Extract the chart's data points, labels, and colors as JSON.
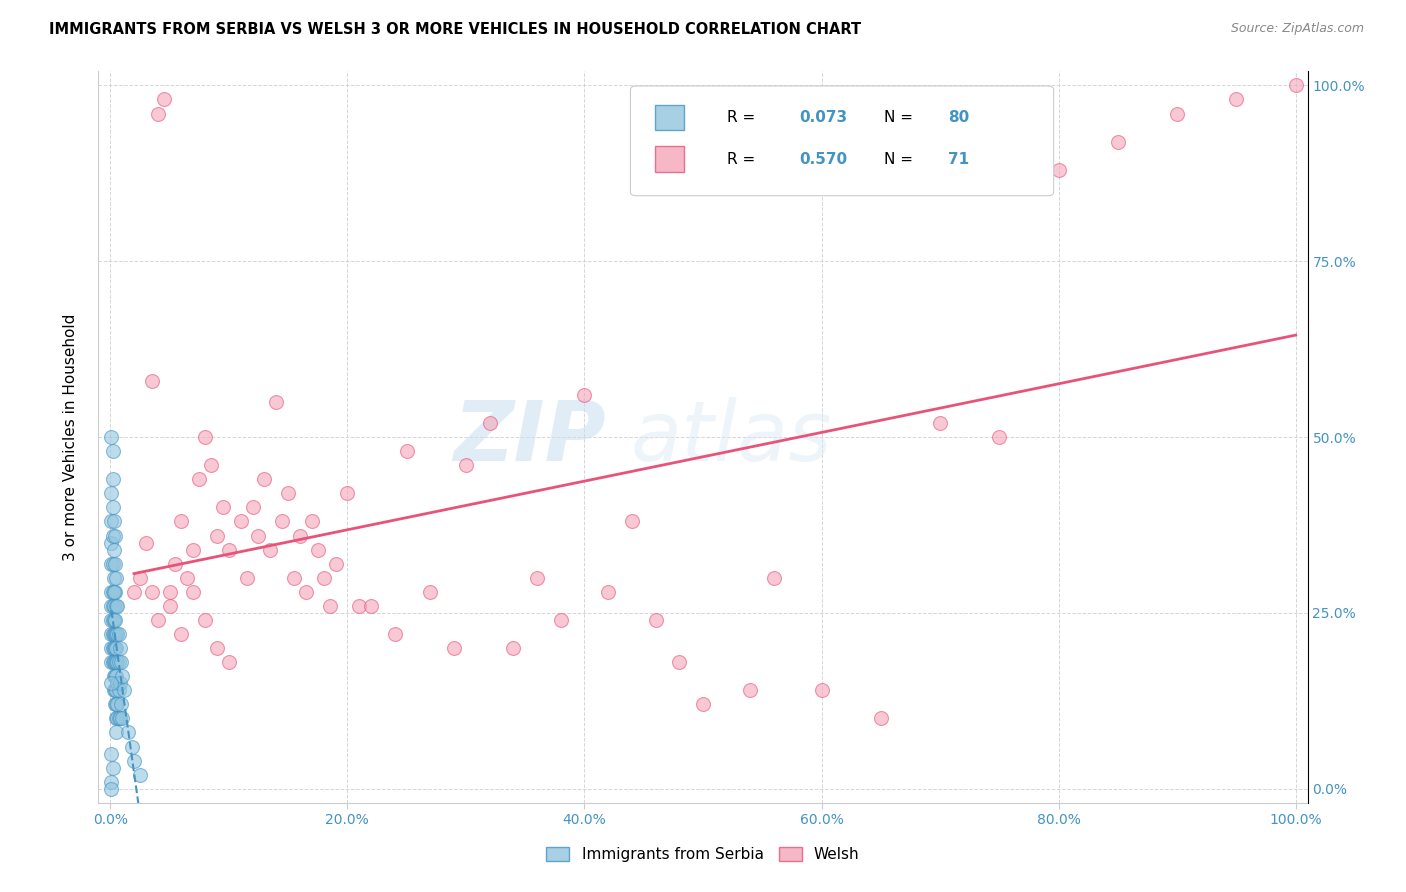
{
  "title": "IMMIGRANTS FROM SERBIA VS WELSH 3 OR MORE VEHICLES IN HOUSEHOLD CORRELATION CHART",
  "source": "Source: ZipAtlas.com",
  "ylabel": "3 or more Vehicles in Household",
  "xlim": [
    -0.01,
    1.01
  ],
  "ylim": [
    -0.02,
    1.02
  ],
  "x_ticks": [
    0.0,
    0.2,
    0.4,
    0.6,
    0.8,
    1.0
  ],
  "y_ticks": [
    0.0,
    0.25,
    0.5,
    0.75,
    1.0
  ],
  "serbia_R": 0.073,
  "serbia_N": 80,
  "welsh_R": 0.57,
  "welsh_N": 71,
  "serbia_color": "#92c5de",
  "welsh_color": "#f4a6b8",
  "serbia_line_color": "#4393c3",
  "welsh_line_color": "#e8537a",
  "watermark_zip": "ZIP",
  "watermark_atlas": "atlas",
  "legend_label1": "Immigrants from Serbia",
  "legend_label2": "Welsh",
  "serbia_x": [
    0.001,
    0.001,
    0.001,
    0.001,
    0.001,
    0.001,
    0.001,
    0.001,
    0.001,
    0.001,
    0.002,
    0.002,
    0.002,
    0.002,
    0.002,
    0.002,
    0.002,
    0.002,
    0.002,
    0.002,
    0.003,
    0.003,
    0.003,
    0.003,
    0.003,
    0.003,
    0.003,
    0.003,
    0.003,
    0.003,
    0.004,
    0.004,
    0.004,
    0.004,
    0.004,
    0.004,
    0.004,
    0.004,
    0.004,
    0.004,
    0.005,
    0.005,
    0.005,
    0.005,
    0.005,
    0.005,
    0.005,
    0.005,
    0.005,
    0.005,
    0.006,
    0.006,
    0.006,
    0.006,
    0.006,
    0.006,
    0.007,
    0.007,
    0.007,
    0.007,
    0.008,
    0.008,
    0.008,
    0.009,
    0.009,
    0.01,
    0.01,
    0.012,
    0.015,
    0.018,
    0.02,
    0.025,
    0.001,
    0.001,
    0.001,
    0.002,
    0.002,
    0.003,
    0.001,
    0.001
  ],
  "serbia_y": [
    0.42,
    0.38,
    0.35,
    0.32,
    0.28,
    0.26,
    0.24,
    0.22,
    0.2,
    0.18,
    0.44,
    0.4,
    0.36,
    0.32,
    0.28,
    0.26,
    0.24,
    0.22,
    0.2,
    0.18,
    0.38,
    0.34,
    0.3,
    0.26,
    0.24,
    0.22,
    0.2,
    0.18,
    0.16,
    0.14,
    0.36,
    0.32,
    0.28,
    0.24,
    0.22,
    0.2,
    0.18,
    0.16,
    0.14,
    0.12,
    0.3,
    0.26,
    0.22,
    0.2,
    0.18,
    0.16,
    0.14,
    0.12,
    0.1,
    0.08,
    0.26,
    0.22,
    0.18,
    0.15,
    0.12,
    0.1,
    0.22,
    0.18,
    0.14,
    0.1,
    0.2,
    0.15,
    0.1,
    0.18,
    0.12,
    0.16,
    0.1,
    0.14,
    0.08,
    0.06,
    0.04,
    0.02,
    0.5,
    0.05,
    0.01,
    0.48,
    0.03,
    0.28,
    0.0,
    0.15
  ],
  "welsh_x": [
    0.02,
    0.03,
    0.035,
    0.04,
    0.045,
    0.05,
    0.055,
    0.06,
    0.065,
    0.07,
    0.075,
    0.08,
    0.085,
    0.09,
    0.095,
    0.1,
    0.11,
    0.115,
    0.12,
    0.125,
    0.13,
    0.135,
    0.14,
    0.145,
    0.15,
    0.155,
    0.16,
    0.165,
    0.17,
    0.175,
    0.18,
    0.185,
    0.19,
    0.2,
    0.21,
    0.22,
    0.24,
    0.25,
    0.27,
    0.29,
    0.3,
    0.32,
    0.34,
    0.36,
    0.38,
    0.4,
    0.42,
    0.44,
    0.46,
    0.48,
    0.5,
    0.54,
    0.56,
    0.6,
    0.65,
    0.7,
    0.75,
    0.8,
    0.85,
    0.9,
    0.95,
    1.0,
    0.025,
    0.035,
    0.04,
    0.05,
    0.06,
    0.07,
    0.08,
    0.09,
    0.1
  ],
  "welsh_y": [
    0.28,
    0.35,
    0.58,
    0.96,
    0.98,
    0.28,
    0.32,
    0.38,
    0.3,
    0.34,
    0.44,
    0.5,
    0.46,
    0.36,
    0.4,
    0.34,
    0.38,
    0.3,
    0.4,
    0.36,
    0.44,
    0.34,
    0.55,
    0.38,
    0.42,
    0.3,
    0.36,
    0.28,
    0.38,
    0.34,
    0.3,
    0.26,
    0.32,
    0.42,
    0.26,
    0.26,
    0.22,
    0.48,
    0.28,
    0.2,
    0.46,
    0.52,
    0.2,
    0.3,
    0.24,
    0.56,
    0.28,
    0.38,
    0.24,
    0.18,
    0.12,
    0.14,
    0.3,
    0.14,
    0.1,
    0.52,
    0.5,
    0.88,
    0.92,
    0.96,
    0.98,
    1.0,
    0.3,
    0.28,
    0.24,
    0.26,
    0.22,
    0.28,
    0.24,
    0.2,
    0.18
  ]
}
